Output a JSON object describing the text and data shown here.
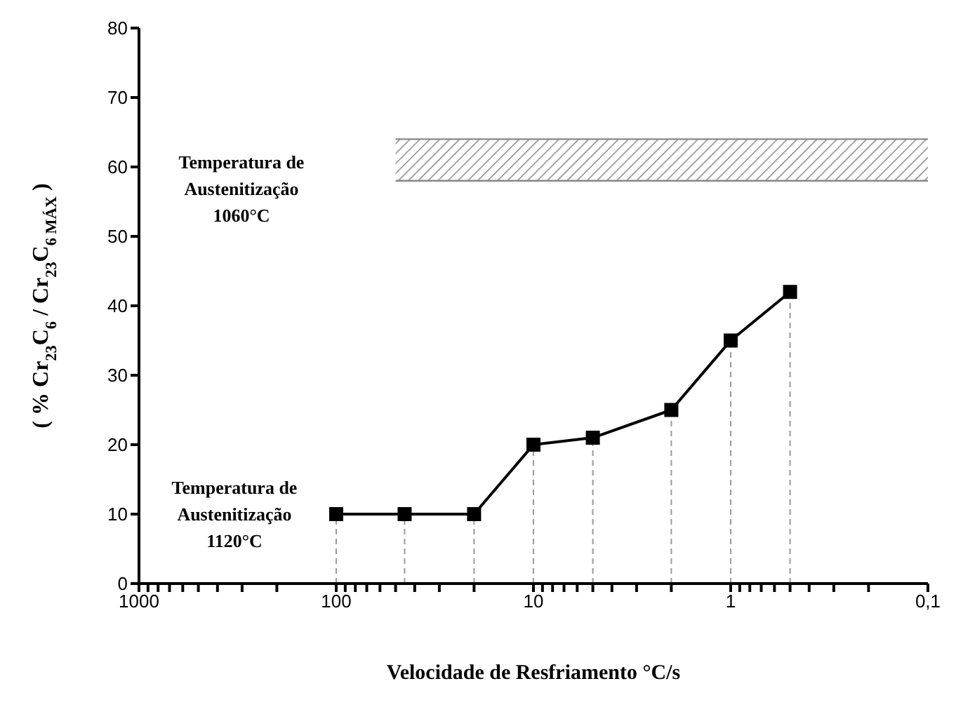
{
  "chart_data": {
    "type": "line",
    "xlabel": "Velocidade de Resfriamento °C/s",
    "ylabel": "( % Cr$_{23}$C$_{6}$ / Cr$_{23}$C$_{6 MÁX}$ )",
    "annotations": [
      "Temperatura de Austenitização 1060°C",
      "Temperatura de Austenitização 1120°C"
    ],
    "log": "x",
    "xlim": [
      1000,
      0.1
    ],
    "xticks": [
      1000,
      {
        "value": 900,
        "label": null
      },
      {
        "value": 800,
        "label": null
      },
      {
        "value": 700,
        "label": null
      },
      {
        "value": 600,
        "label": null
      },
      {
        "value": 500,
        "label": null
      },
      {
        "value": 400,
        "label": null
      },
      {
        "value": 300,
        "label": null
      },
      {
        "value": 200,
        "label": null
      },
      100,
      {
        "value": 90,
        "label": null
      },
      {
        "value": 80,
        "label": null
      },
      {
        "value": 70,
        "label": null
      },
      {
        "value": 60,
        "label": null
      },
      {
        "value": 50,
        "label": null
      },
      {
        "value": 40,
        "label": null
      },
      {
        "value": 30,
        "label": null
      },
      {
        "value": 20,
        "label": null
      },
      10,
      {
        "value": 9,
        "label": null
      },
      {
        "value": 8,
        "label": null
      },
      {
        "value": 7,
        "label": null
      },
      {
        "value": 6,
        "label": null
      },
      {
        "value": 5,
        "label": null
      },
      {
        "value": 4,
        "label": null
      },
      {
        "value": 3,
        "label": null
      },
      {
        "value": 2,
        "label": null
      },
      1,
      {
        "value": 0.9,
        "label": null
      },
      {
        "value": 0.8,
        "label": null
      },
      {
        "value": 0.7,
        "label": null
      },
      {
        "value": 0.6,
        "label": null
      },
      {
        "value": 0.5,
        "label": null
      },
      {
        "value": 0.4,
        "label": null
      },
      {
        "value": 0.3,
        "label": null
      },
      {
        "value": 0.2,
        "label": null
      },
      {
        "value": 0.1,
        "label": "0,1"
      }
    ],
    "ylim": [
      0,
      80
    ],
    "yticks": [
      0,
      10,
      20,
      30,
      40,
      50,
      60,
      70,
      80
    ],
    "grid": false,
    "legend": false,
    "series": [
      {
        "type": "line",
        "color": "#888888",
        "marker": "none",
        "x": [
          50,
          0.1
        ],
        "lower": [
          58,
          58
        ],
        "upper": [
          64,
          64
        ],
        "values": [
          64,
          64
        ]
      },
      {
        "type": "line",
        "color": "#888888",
        "marker": "none",
        "x": [
          50,
          0.1
        ],
        "values": [
          58,
          58
        ]
      },
      {
        "color": "#000000",
        "marker": "square",
        "line_style": "solid",
        "x": [
          100,
          45,
          20,
          10,
          5,
          2,
          1,
          0.5
        ],
        "values": [
          10,
          10,
          10,
          20,
          21,
          25,
          35,
          42
        ]
      }
    ],
    "ref_lines": [
      {
        "axis": "x",
        "value": 100,
        "color": "#999999",
        "line_style": "dashed"
      },
      {
        "axis": "x",
        "value": 45,
        "color": "#999999",
        "line_style": "dashed"
      },
      {
        "axis": "x",
        "value": 20,
        "color": "#999999",
        "line_style": "dashed"
      },
      {
        "axis": "x",
        "value": 10,
        "color": "#999999",
        "line_style": "dashed"
      },
      {
        "axis": "x",
        "value": 5,
        "color": "#999999",
        "line_style": "dashed"
      },
      {
        "axis": "x",
        "value": 2,
        "color": "#999999",
        "line_style": "dashed"
      },
      {
        "axis": "x",
        "value": 1,
        "color": "#999999",
        "line_style": "dashed"
      },
      {
        "axis": "x",
        "value": 0.5,
        "color": "#999999",
        "line_style": "dashed"
      }
    ]
  }
}
